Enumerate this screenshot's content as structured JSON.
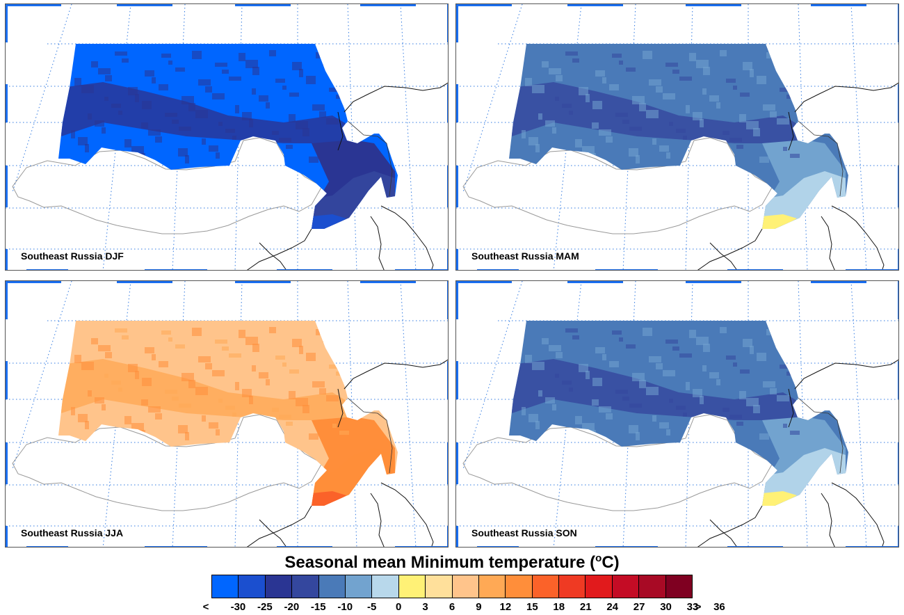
{
  "title": {
    "main": "Seasonal mean Minimum temperature (",
    "unit_sup": "o",
    "unit_end": "C)"
  },
  "colorbar": {
    "colors": [
      "#0066ff",
      "#1b4fcf",
      "#2a3593",
      "#34479e",
      "#4a7ab8",
      "#72a3cf",
      "#b8d8eb",
      "#fff176",
      "#ffe09b",
      "#ffc48b",
      "#ffa955",
      "#ff8e3a",
      "#fb6229",
      "#ef3a23",
      "#e11a1c",
      "#c40c25",
      "#a80a25",
      "#7f0021"
    ],
    "ticks": [
      "<",
      "-30",
      "-25",
      "-20",
      "-15",
      "-10",
      "-5",
      "0",
      "3",
      "6",
      "9",
      "12",
      "15",
      "18",
      "21",
      "24",
      "27",
      "30",
      "33",
      "36",
      ">"
    ]
  },
  "panels": [
    {
      "label": "Southeast Russia DJF",
      "base": "#0066ff",
      "patch": "#2a3593",
      "coast": "#2a3593",
      "ext": "#34479e",
      "ext2": "#1b4fcf"
    },
    {
      "label": "Southeast Russia MAM",
      "base": "#4a7ab8",
      "patch": "#34479e",
      "coast": "#72a3cf",
      "ext": "#b8d8eb",
      "ext2": "#fff176"
    },
    {
      "label": "Southeast Russia JJA",
      "base": "#ffc48b",
      "patch": "#ffa955",
      "coast": "#ff8e3a",
      "ext": "#ff8e3a",
      "ext2": "#fb6229"
    },
    {
      "label": "Southeast Russia SON",
      "base": "#4a7ab8",
      "patch": "#34479e",
      "coast": "#72a3cf",
      "ext": "#b8d8eb",
      "ext2": "#fff176"
    }
  ]
}
